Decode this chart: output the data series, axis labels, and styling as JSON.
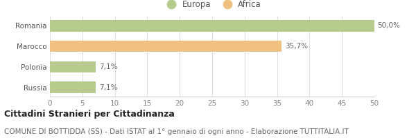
{
  "categories": [
    "Romania",
    "Marocco",
    "Polonia",
    "Russia"
  ],
  "values": [
    50.0,
    35.7,
    7.1,
    7.1
  ],
  "labels": [
    "50,0%",
    "35,7%",
    "7,1%",
    "7,1%"
  ],
  "bar_colors": [
    "#b5cc8e",
    "#f0c080",
    "#b5cc8e",
    "#b5cc8e"
  ],
  "legend_labels": [
    "Europa",
    "Africa"
  ],
  "legend_colors": [
    "#b5cc8e",
    "#f0c080"
  ],
  "xlim": [
    0,
    50
  ],
  "xticks": [
    0,
    5,
    10,
    15,
    20,
    25,
    30,
    35,
    40,
    45,
    50
  ],
  "title_bold": "Cittadini Stranieri per Cittadinanza",
  "subtitle": "COMUNE DI BOTTIDDA (SS) - Dati ISTAT al 1° gennaio di ogni anno - Elaborazione TUTTITALIA.IT",
  "background_color": "#ffffff",
  "bar_height": 0.55,
  "label_fontsize": 7.5,
  "tick_fontsize": 7.5,
  "ytick_fontsize": 7.5,
  "legend_fontsize": 8.5,
  "title_fontsize": 9,
  "subtitle_fontsize": 7.5
}
